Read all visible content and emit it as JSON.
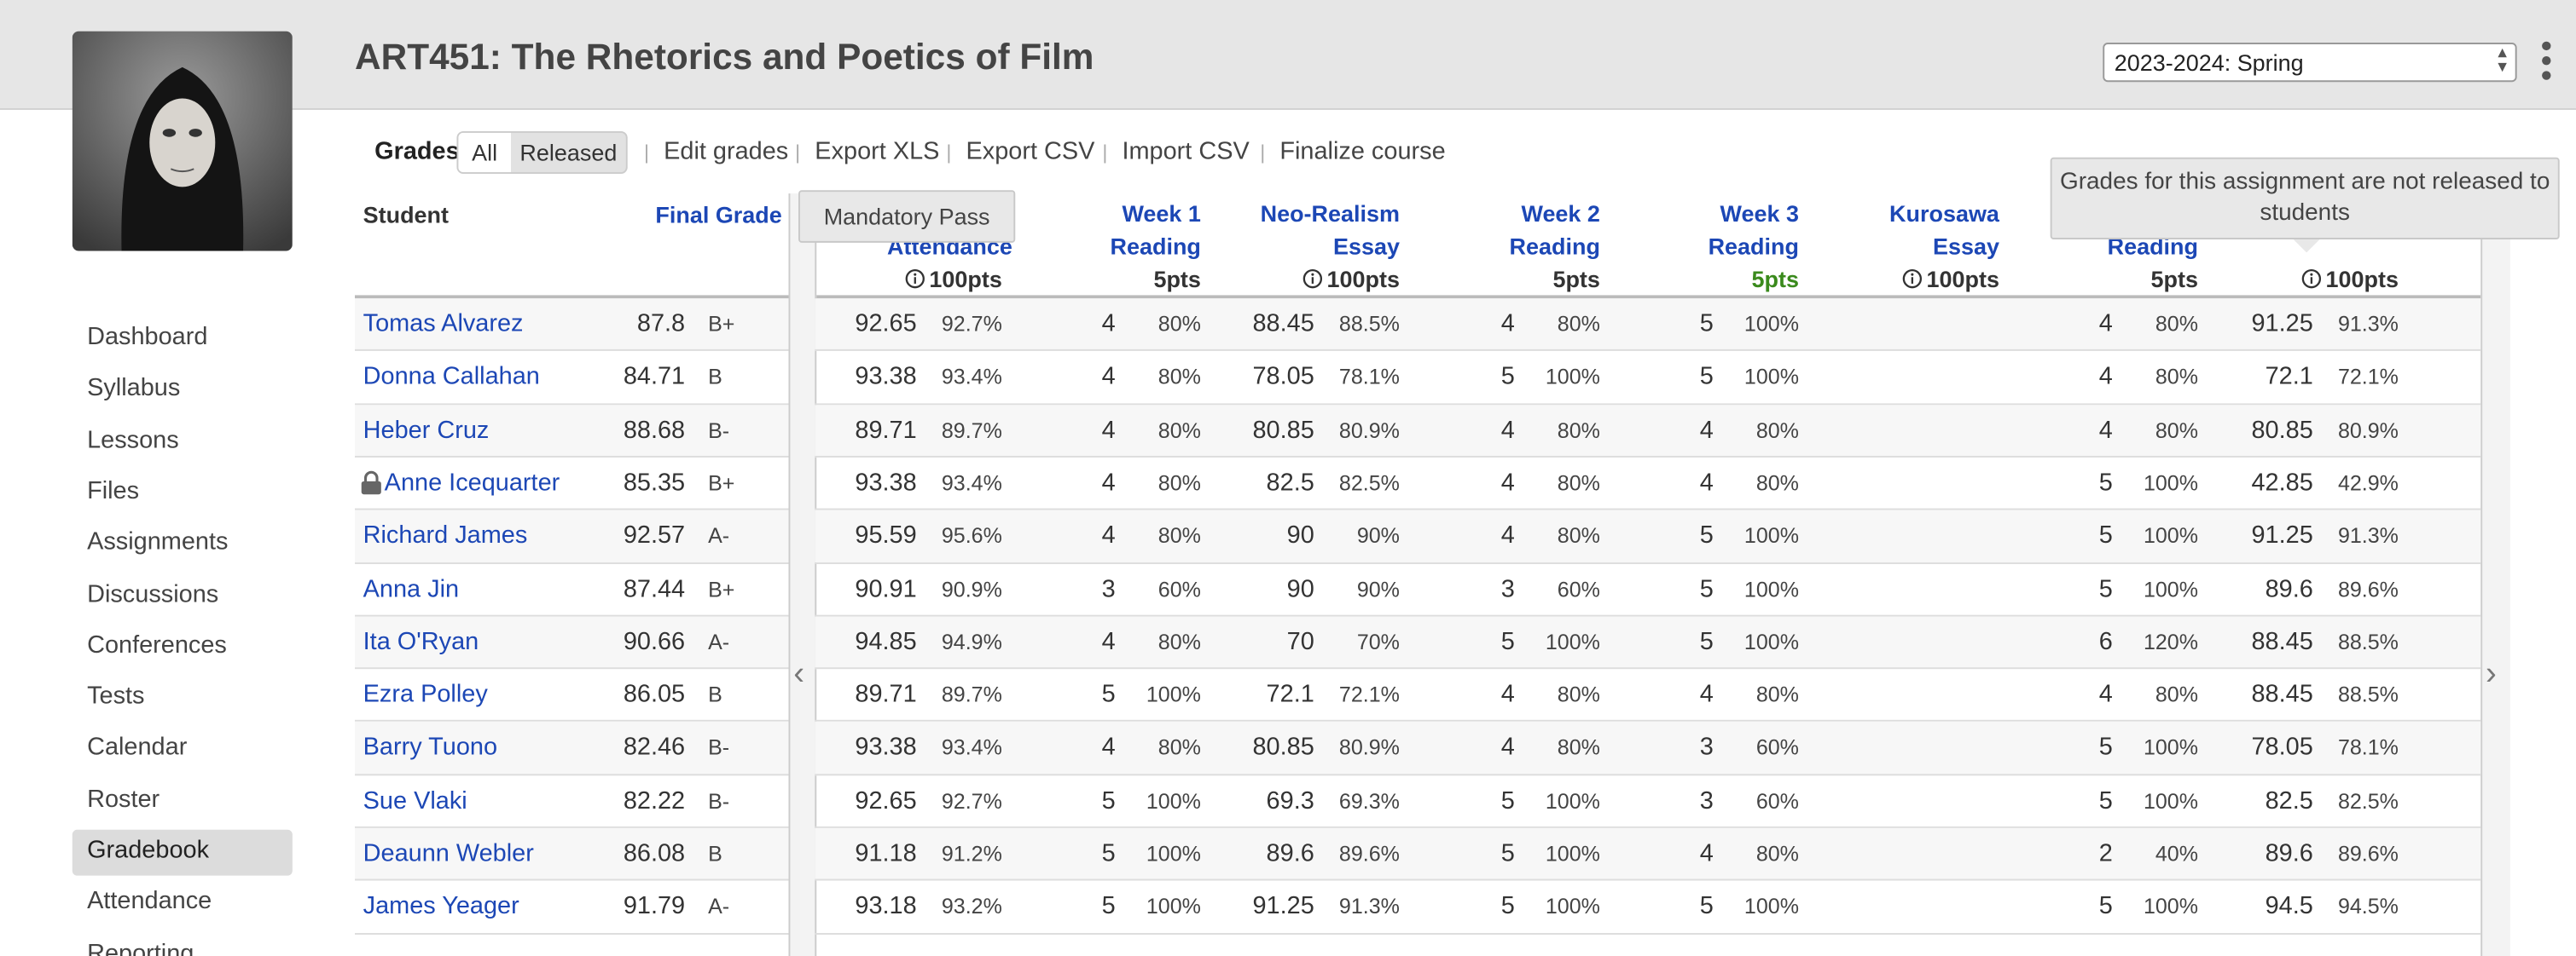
{
  "header": {
    "title": "ART451: The Rhetorics and Poetics of Film",
    "term": "2023-2024: Spring"
  },
  "toolbar": {
    "label": "Grades",
    "toggle": [
      "All",
      "Released"
    ],
    "selected": 0,
    "links": [
      "Edit grades",
      "Export XLS",
      "Export CSV",
      "Import CSV",
      "Finalize course"
    ],
    "separator": "|"
  },
  "nav": {
    "items": [
      "Dashboard",
      "Syllabus",
      "Lessons",
      "Files",
      "Assignments",
      "Discussions",
      "Conferences",
      "Tests",
      "Calendar",
      "Roster",
      "Gradebook",
      "Attendance",
      "Reporting"
    ],
    "active": 10
  },
  "table": {
    "student_header": "Student",
    "final_header": "Final Grade",
    "columns": [
      {
        "title": "Attendance",
        "points": "100pts",
        "info": true
      },
      {
        "title": "Week 1 Reading",
        "points": "5pts",
        "info": false
      },
      {
        "title": "Neo-Realism Essay",
        "points": "100pts",
        "info": true
      },
      {
        "title": "Week 2 Reading",
        "points": "5pts",
        "info": false
      },
      {
        "title": "Week 3 Reading",
        "points": "5pts",
        "info": false,
        "points_color": "#3a8a1c"
      },
      {
        "title": "Kurosawa Essay",
        "points": "100pts",
        "info": true
      },
      {
        "title": "Reading",
        "points": "5pts",
        "info": false
      },
      {
        "points": "100pts",
        "info": true
      }
    ],
    "rows": [
      {
        "name": "Tomas Alvarez",
        "final": "87.8",
        "letter": "B+",
        "grades": [
          [
            "92.65",
            "92.7%"
          ],
          [
            "4",
            "80%"
          ],
          [
            "88.45",
            "88.5%"
          ],
          [
            "4",
            "80%"
          ],
          [
            "5",
            "100%"
          ],
          null,
          [
            "4",
            "80%"
          ],
          [
            "91.25",
            "91.3%"
          ]
        ]
      },
      {
        "name": "Donna Callahan",
        "final": "84.71",
        "letter": "B",
        "grades": [
          [
            "93.38",
            "93.4%"
          ],
          [
            "4",
            "80%"
          ],
          [
            "78.05",
            "78.1%"
          ],
          [
            "5",
            "100%"
          ],
          [
            "5",
            "100%"
          ],
          null,
          [
            "4",
            "80%"
          ],
          [
            "72.1",
            "72.1%"
          ]
        ]
      },
      {
        "name": "Heber Cruz",
        "final": "88.68",
        "letter": "B-",
        "grades": [
          [
            "89.71",
            "89.7%"
          ],
          [
            "4",
            "80%"
          ],
          [
            "80.85",
            "80.9%"
          ],
          [
            "4",
            "80%"
          ],
          [
            "4",
            "80%"
          ],
          null,
          [
            "4",
            "80%"
          ],
          [
            "80.85",
            "80.9%"
          ]
        ]
      },
      {
        "name": "Anne Icequarter",
        "locked": true,
        "final": "85.35",
        "letter": "B+",
        "grades": [
          [
            "93.38",
            "93.4%"
          ],
          [
            "4",
            "80%"
          ],
          [
            "82.5",
            "82.5%"
          ],
          [
            "4",
            "80%"
          ],
          [
            "4",
            "80%"
          ],
          null,
          [
            "5",
            "100%"
          ],
          [
            "42.85",
            "42.9%"
          ]
        ]
      },
      {
        "name": "Richard James",
        "final": "92.57",
        "letter": "A-",
        "grades": [
          [
            "95.59",
            "95.6%"
          ],
          [
            "4",
            "80%"
          ],
          [
            "90",
            "90%"
          ],
          [
            "4",
            "80%"
          ],
          [
            "5",
            "100%"
          ],
          null,
          [
            "5",
            "100%"
          ],
          [
            "91.25",
            "91.3%"
          ]
        ]
      },
      {
        "name": "Anna Jin",
        "final": "87.44",
        "letter": "B+",
        "grades": [
          [
            "90.91",
            "90.9%"
          ],
          [
            "3",
            "60%"
          ],
          [
            "90",
            "90%"
          ],
          [
            "3",
            "60%"
          ],
          [
            "5",
            "100%"
          ],
          null,
          [
            "5",
            "100%"
          ],
          [
            "89.6",
            "89.6%"
          ]
        ]
      },
      {
        "name": "Ita O'Ryan",
        "final": "90.66",
        "letter": "A-",
        "grades": [
          [
            "94.85",
            "94.9%"
          ],
          [
            "4",
            "80%"
          ],
          [
            "70",
            "70%"
          ],
          [
            "5",
            "100%"
          ],
          [
            "5",
            "100%"
          ],
          null,
          [
            "6",
            "120%"
          ],
          [
            "88.45",
            "88.5%"
          ]
        ]
      },
      {
        "name": "Ezra Polley",
        "final": "86.05",
        "letter": "B",
        "grades": [
          [
            "89.71",
            "89.7%"
          ],
          [
            "5",
            "100%"
          ],
          [
            "72.1",
            "72.1%"
          ],
          [
            "4",
            "80%"
          ],
          [
            "4",
            "80%"
          ],
          null,
          [
            "4",
            "80%"
          ],
          [
            "88.45",
            "88.5%"
          ]
        ]
      },
      {
        "name": "Barry Tuono",
        "final": "82.46",
        "letter": "B-",
        "grades": [
          [
            "93.38",
            "93.4%"
          ],
          [
            "4",
            "80%"
          ],
          [
            "80.85",
            "80.9%"
          ],
          [
            "4",
            "80%"
          ],
          [
            "3",
            "60%"
          ],
          null,
          [
            "5",
            "100%"
          ],
          [
            "78.05",
            "78.1%"
          ]
        ]
      },
      {
        "name": "Sue Vlaki",
        "final": "82.22",
        "letter": "B-",
        "grades": [
          [
            "92.65",
            "92.7%"
          ],
          [
            "5",
            "100%"
          ],
          [
            "69.3",
            "69.3%"
          ],
          [
            "5",
            "100%"
          ],
          [
            "3",
            "60%"
          ],
          null,
          [
            "5",
            "100%"
          ],
          [
            "82.5",
            "82.5%"
          ]
        ]
      },
      {
        "name": "Deaunn Webler",
        "final": "86.08",
        "letter": "B",
        "grades": [
          [
            "91.18",
            "91.2%"
          ],
          [
            "5",
            "100%"
          ],
          [
            "89.6",
            "89.6%"
          ],
          [
            "5",
            "100%"
          ],
          [
            "4",
            "80%"
          ],
          null,
          [
            "2",
            "40%"
          ],
          [
            "89.6",
            "89.6%"
          ]
        ]
      },
      {
        "name": "James Yeager",
        "final": "91.79",
        "letter": "A-",
        "grades": [
          [
            "93.18",
            "93.2%"
          ],
          [
            "5",
            "100%"
          ],
          [
            "91.25",
            "91.3%"
          ],
          [
            "5",
            "100%"
          ],
          [
            "5",
            "100%"
          ],
          null,
          [
            "5",
            "100%"
          ],
          [
            "94.5",
            "94.5%"
          ]
        ]
      }
    ]
  },
  "tooltips": {
    "column": "Mandatory Pass",
    "release": "Grades for this assignment are not released to students"
  }
}
